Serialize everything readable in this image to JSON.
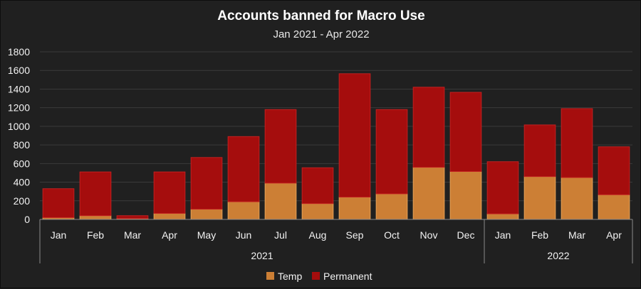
{
  "chart_data": {
    "type": "bar",
    "stacked": true,
    "title": "Accounts banned for Macro Use",
    "subtitle": "Jan 2021 - Apr 2022",
    "categories": [
      "Jan",
      "Feb",
      "Mar",
      "Apr",
      "May",
      "Jun",
      "Jul",
      "Aug",
      "Sep",
      "Oct",
      "Nov",
      "Dec",
      "Jan",
      "Feb",
      "Mar",
      "Apr"
    ],
    "groups": [
      {
        "label": "2021",
        "start": 0,
        "end": 11
      },
      {
        "label": "2022",
        "start": 12,
        "end": 15
      }
    ],
    "series": [
      {
        "name": "Temp",
        "color": "#cc7f35",
        "values": [
          20,
          40,
          10,
          65,
          110,
          190,
          390,
          170,
          240,
          275,
          560,
          515,
          60,
          460,
          450,
          265
        ]
      },
      {
        "name": "Permanent",
        "color": "#a50d0d",
        "values": [
          310,
          470,
          30,
          445,
          555,
          700,
          790,
          385,
          1325,
          905,
          860,
          850,
          560,
          555,
          740,
          515
        ]
      }
    ],
    "yticks": [
      0,
      200,
      400,
      600,
      800,
      1000,
      1200,
      1400,
      1600,
      1800
    ],
    "ylim": [
      0,
      1800
    ],
    "grid": true,
    "legend": "bottom"
  }
}
